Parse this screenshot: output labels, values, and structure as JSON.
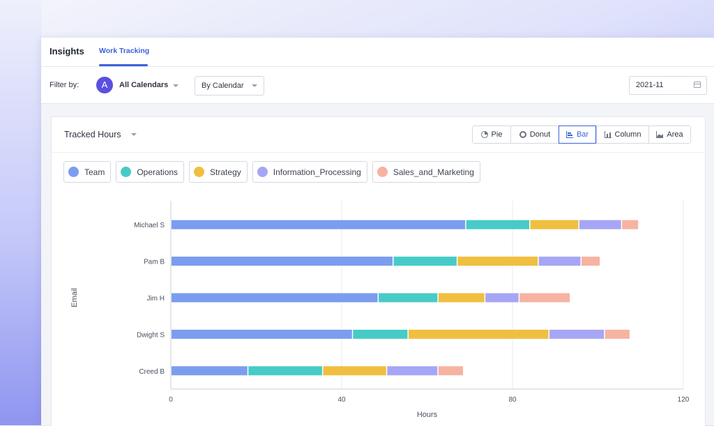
{
  "header": {
    "brand": "Insights",
    "active_tab": "Work Tracking"
  },
  "filters": {
    "label": "Filter by:",
    "avatar_letter": "A",
    "calendar": "All Calendars",
    "group_by": "By Calendar",
    "date": "2021-11"
  },
  "card": {
    "title": "Tracked Hours",
    "chart_types": [
      "Pie",
      "Donut",
      "Bar",
      "Column",
      "Area"
    ],
    "active_chart_type": "Bar"
  },
  "colors": {
    "Team": "#7b9def",
    "Operations": "#47cbc7",
    "Strategy": "#f0bf3f",
    "Information_Processing": "#a6a6f6",
    "Sales_and_Marketing": "#f7b3a2"
  },
  "chart_data": {
    "type": "bar",
    "orientation": "horizontal",
    "stacked": true,
    "categories": [
      "Michael S",
      "Pam B",
      "Jim H",
      "Dwight S",
      "Creed B"
    ],
    "series": [
      {
        "name": "Team",
        "values": [
          69,
          52,
          48.5,
          42.5,
          18
        ]
      },
      {
        "name": "Operations",
        "values": [
          15,
          15,
          14,
          13,
          17.5
        ]
      },
      {
        "name": "Strategy",
        "values": [
          11.5,
          19,
          11,
          33,
          15
        ]
      },
      {
        "name": "Information_Processing",
        "values": [
          10,
          10,
          8,
          13,
          12
        ]
      },
      {
        "name": "Sales_and_Marketing",
        "values": [
          4,
          4.5,
          12,
          6,
          6
        ]
      }
    ],
    "xlabel": "Hours",
    "ylabel": "Email",
    "xlim": [
      0,
      120
    ],
    "xticks": [
      0,
      40,
      80,
      120
    ],
    "grid": true,
    "legend": "top-left"
  }
}
